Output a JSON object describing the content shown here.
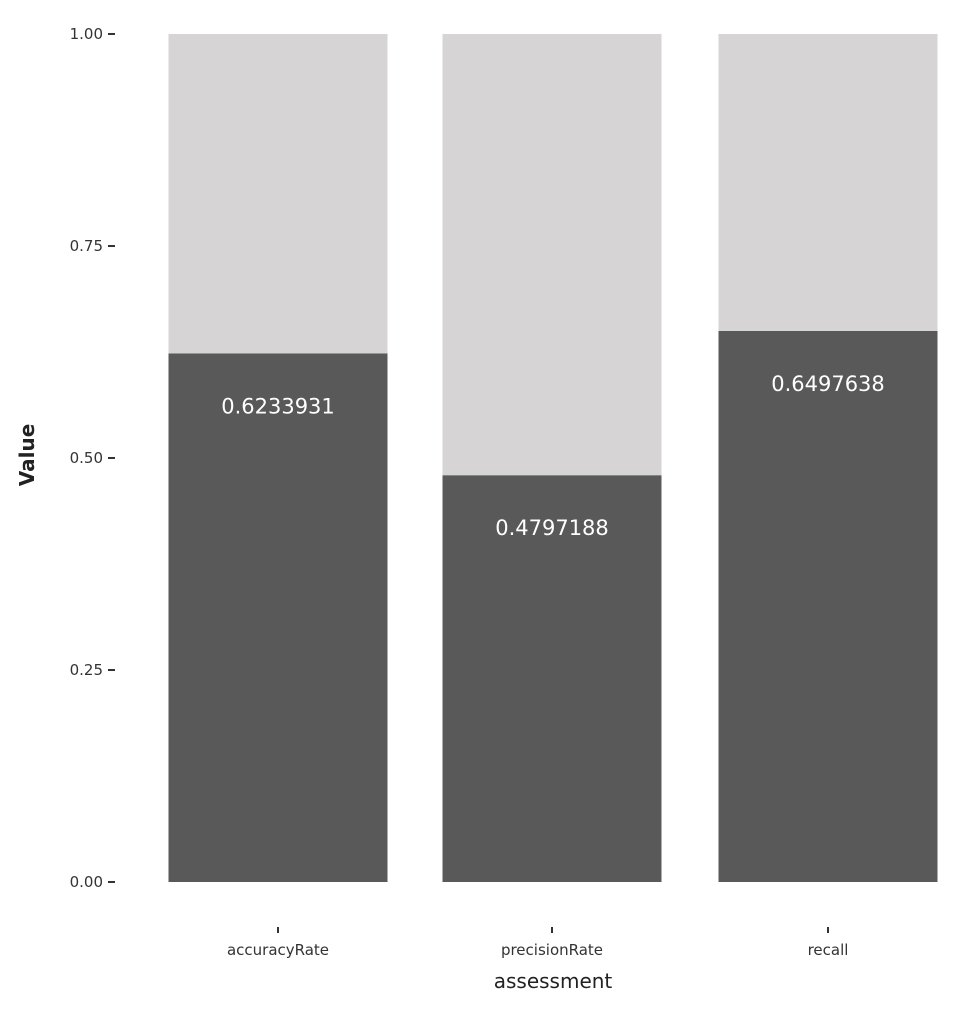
{
  "chart_data": {
    "type": "bar",
    "stacked": true,
    "xlabel": "assessment",
    "ylabel": "Value",
    "ylim": [
      0,
      1
    ],
    "yticks": [
      "0.00",
      "0.25",
      "0.50",
      "0.75",
      "1.00"
    ],
    "ytick_values": [
      0,
      0.25,
      0.5,
      0.75,
      1.0
    ],
    "categories": [
      "accuracyRate",
      "precisionRate",
      "recall"
    ],
    "series": [
      {
        "values": [
          0.6233931,
          0.4797188,
          0.6497638
        ],
        "color": "#595959"
      },
      {
        "values": [
          0.3766069,
          0.5202812,
          0.3502362
        ],
        "color": "#d6d4d5"
      }
    ],
    "data_labels": [
      "0.6233931",
      "0.4797188",
      "0.6497638"
    ],
    "grid": false,
    "legend": "none"
  }
}
